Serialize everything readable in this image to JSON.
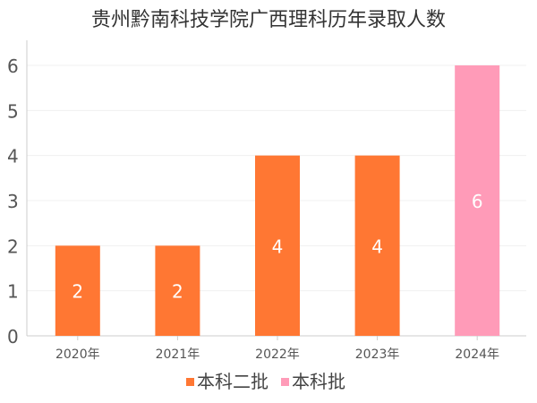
{
  "chart_data": {
    "type": "bar",
    "title": "贵州黔南科技学院广西理科历年录取人数",
    "categories": [
      "2020年",
      "2021年",
      "2022年",
      "2023年",
      "2024年"
    ],
    "values": [
      2,
      2,
      4,
      4,
      6
    ],
    "value_labels": [
      "2",
      "2",
      "4",
      "4",
      "6"
    ],
    "bar_series": [
      "本科二批",
      "本科二批",
      "本科二批",
      "本科二批",
      "本科批"
    ],
    "series": [
      {
        "name": "本科二批",
        "color": "#ff7733"
      },
      {
        "name": "本科批",
        "color": "#ff9bb8"
      }
    ],
    "ylim": [
      0,
      6
    ],
    "yticks": [
      "0",
      "1",
      "2",
      "3",
      "4",
      "5",
      "6"
    ],
    "grid": true,
    "legend_position": "bottom"
  }
}
